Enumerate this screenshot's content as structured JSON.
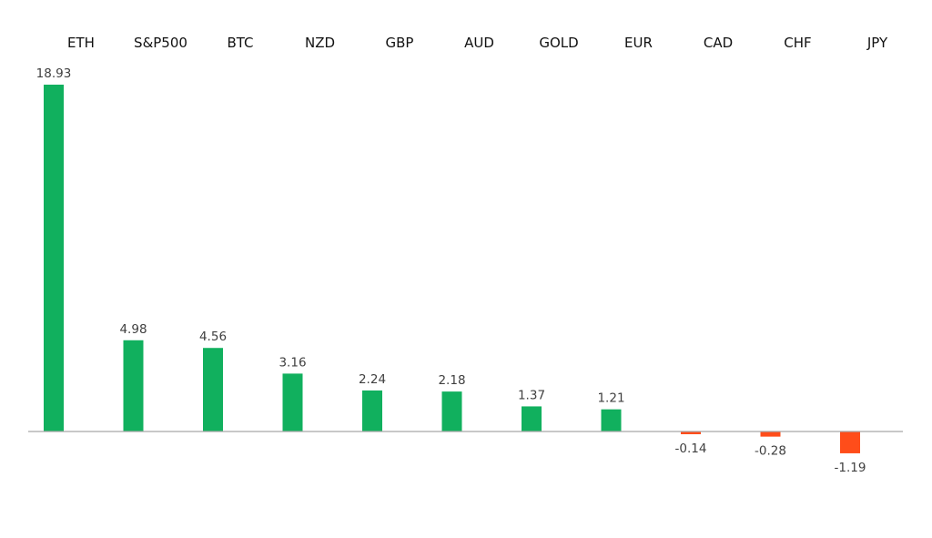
{
  "chart_data": {
    "type": "bar",
    "title": "",
    "xlabel": "",
    "ylabel": "",
    "categories": [
      "ETH",
      "S&P500",
      "BTC",
      "NZD",
      "GBP",
      "AUD",
      "GOLD",
      "EUR",
      "CAD",
      "CHF",
      "JPY"
    ],
    "values": [
      18.93,
      4.98,
      4.56,
      3.16,
      2.24,
      2.18,
      1.37,
      1.21,
      -0.14,
      -0.28,
      -1.19
    ],
    "value_labels": [
      "18.93",
      "4.98",
      "4.56",
      "3.16",
      "2.24",
      "2.18",
      "1.37",
      "1.21",
      "-0.14",
      "-0.28",
      "-1.19"
    ],
    "ylim": [
      -2.7,
      20.3
    ],
    "grid": false,
    "legend": "none",
    "category_label_position": "top",
    "colors": {
      "positive": "#11b05e",
      "negative": "#ff4d1a",
      "axis": "#a6a6a6"
    }
  }
}
